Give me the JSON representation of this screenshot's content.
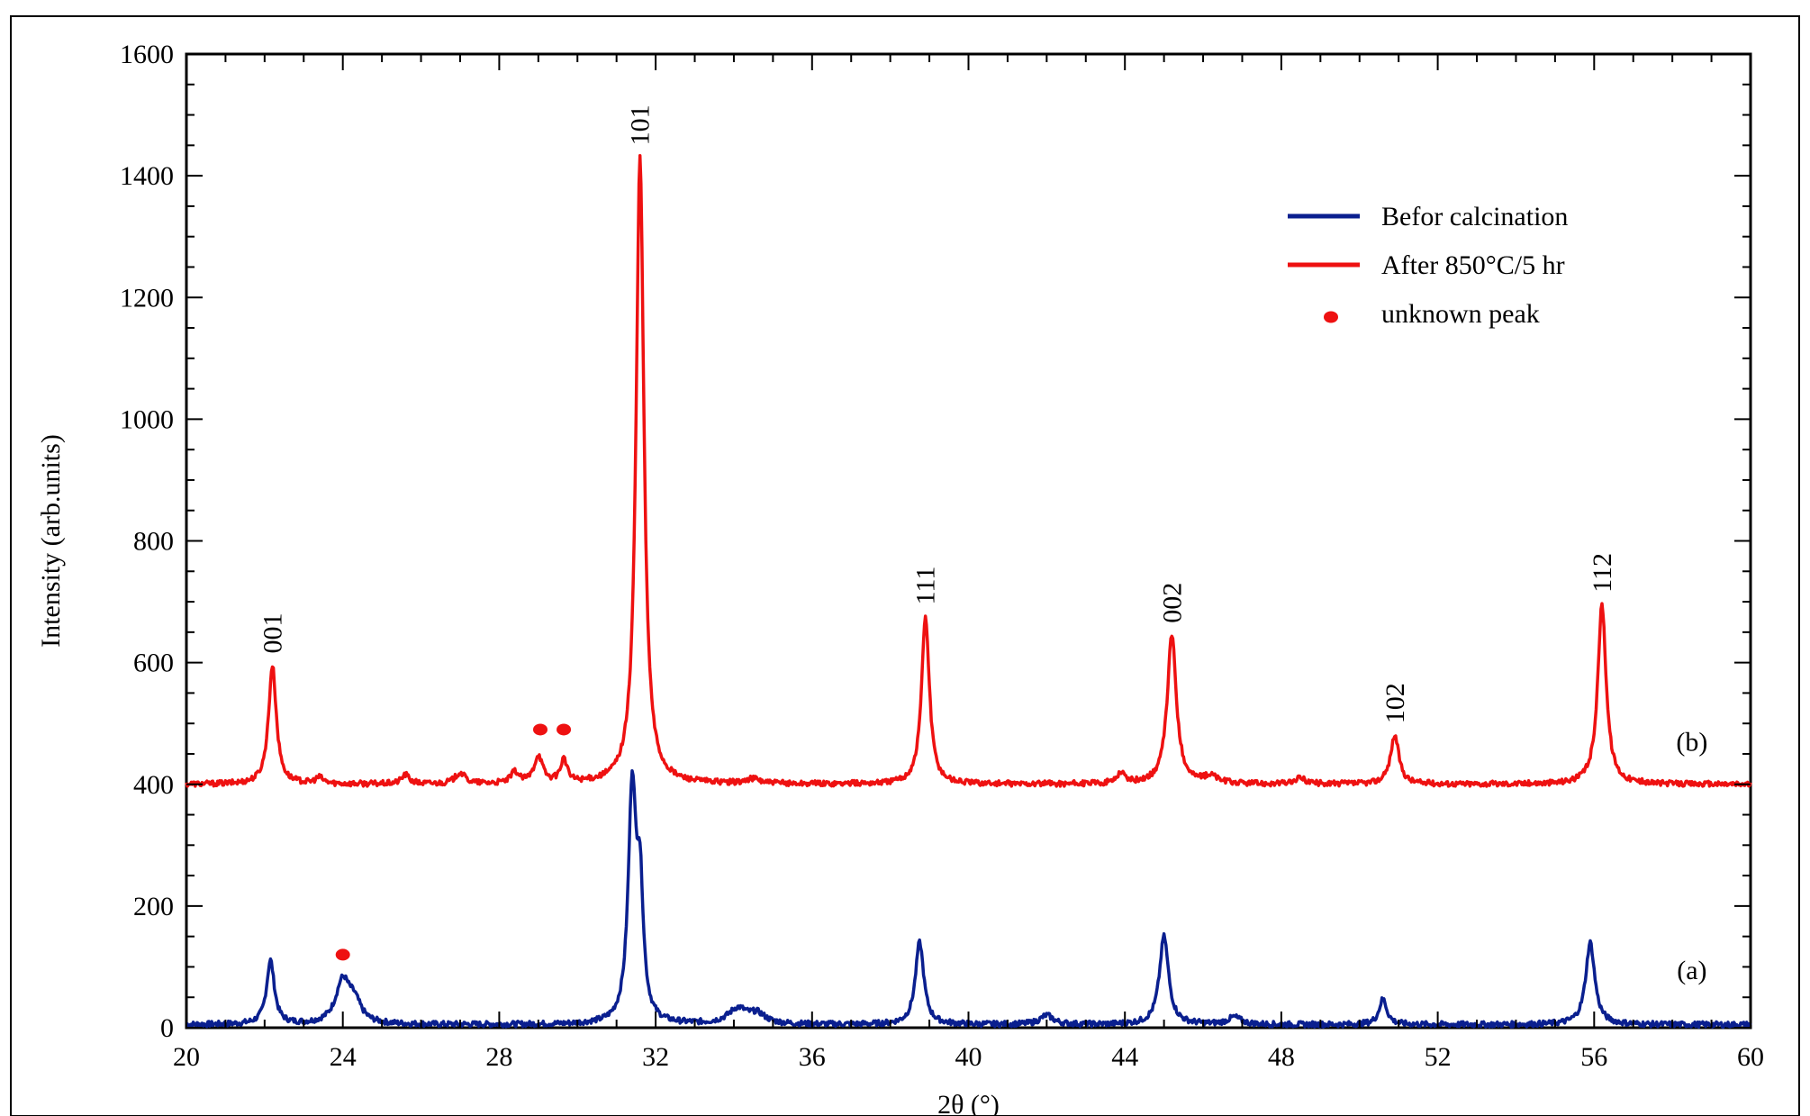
{
  "chart_data": {
    "type": "line",
    "xlabel": "2θ (°)",
    "ylabel": "Intensity (arb.units)",
    "xlim": [
      20,
      60
    ],
    "ylim": [
      0,
      1600
    ],
    "x_ticks": [
      20,
      24,
      28,
      32,
      36,
      40,
      44,
      48,
      52,
      56,
      60
    ],
    "y_ticks": [
      0,
      200,
      400,
      600,
      800,
      1000,
      1200,
      1400,
      1600
    ],
    "grid": false,
    "legend_position": "top-right",
    "legend": [
      {
        "label": "Befor calcination",
        "color": "#0a1f8f",
        "marker": "line"
      },
      {
        "label": "After 850°C/5 hr",
        "color": "#ee1111",
        "marker": "line"
      },
      {
        "label": "unknown peak",
        "color": "#ee1111",
        "marker": "dot"
      }
    ],
    "series": [
      {
        "name": "Befor calcination",
        "curve_label": "(a)",
        "color": "#0a1f8f",
        "baseline": 5,
        "peaks": [
          {
            "x": 22.15,
            "height": 105,
            "width": 0.12
          },
          {
            "x": 24.0,
            "height": 70,
            "width": 0.22
          },
          {
            "x": 24.3,
            "height": 30,
            "width": 0.2
          },
          {
            "x": 31.4,
            "height": 380,
            "width": 0.12
          },
          {
            "x": 31.6,
            "height": 200,
            "width": 0.1
          },
          {
            "x": 34.1,
            "height": 25,
            "width": 0.3
          },
          {
            "x": 34.6,
            "height": 15,
            "width": 0.25
          },
          {
            "x": 38.75,
            "height": 135,
            "width": 0.13
          },
          {
            "x": 42.0,
            "height": 15,
            "width": 0.2
          },
          {
            "x": 45.0,
            "height": 145,
            "width": 0.14
          },
          {
            "x": 46.8,
            "height": 12,
            "width": 0.2
          },
          {
            "x": 50.6,
            "height": 42,
            "width": 0.12
          },
          {
            "x": 55.9,
            "height": 135,
            "width": 0.14
          }
        ]
      },
      {
        "name": "After 850°C/5 hr",
        "curve_label": "(b)",
        "color": "#ee1111",
        "baseline": 400,
        "peaks": [
          {
            "x": 22.2,
            "height": 195,
            "width": 0.12
          },
          {
            "x": 23.4,
            "height": 10,
            "width": 0.12
          },
          {
            "x": 25.6,
            "height": 15,
            "width": 0.12
          },
          {
            "x": 27.0,
            "height": 18,
            "width": 0.15
          },
          {
            "x": 28.4,
            "height": 18,
            "width": 0.12
          },
          {
            "x": 29.0,
            "height": 45,
            "width": 0.13
          },
          {
            "x": 29.65,
            "height": 38,
            "width": 0.1
          },
          {
            "x": 31.6,
            "height": 1030,
            "width": 0.12
          },
          {
            "x": 34.5,
            "height": 8,
            "width": 0.2
          },
          {
            "x": 38.9,
            "height": 275,
            "width": 0.12
          },
          {
            "x": 43.9,
            "height": 18,
            "width": 0.12
          },
          {
            "x": 45.2,
            "height": 245,
            "width": 0.14
          },
          {
            "x": 46.2,
            "height": 12,
            "width": 0.2
          },
          {
            "x": 48.5,
            "height": 10,
            "width": 0.15
          },
          {
            "x": 50.9,
            "height": 80,
            "width": 0.13
          },
          {
            "x": 56.2,
            "height": 295,
            "width": 0.13
          }
        ]
      }
    ],
    "peak_labels": [
      {
        "text": "001",
        "x": 22.2,
        "y": 615
      },
      {
        "text": "101",
        "x": 31.6,
        "y": 1450
      },
      {
        "text": "111",
        "x": 38.9,
        "y": 695
      },
      {
        "text": "002",
        "x": 45.2,
        "y": 665
      },
      {
        "text": "102",
        "x": 50.9,
        "y": 500
      },
      {
        "text": "112",
        "x": 56.2,
        "y": 715
      }
    ],
    "curve_label_positions": [
      {
        "text": "(b)",
        "x": 58.5,
        "y": 455
      },
      {
        "text": "(a)",
        "x": 58.5,
        "y": 80
      }
    ],
    "unknown_peak_markers": [
      {
        "x": 24.0,
        "y": 120
      },
      {
        "x": 29.05,
        "y": 490
      },
      {
        "x": 29.65,
        "y": 490
      }
    ]
  }
}
